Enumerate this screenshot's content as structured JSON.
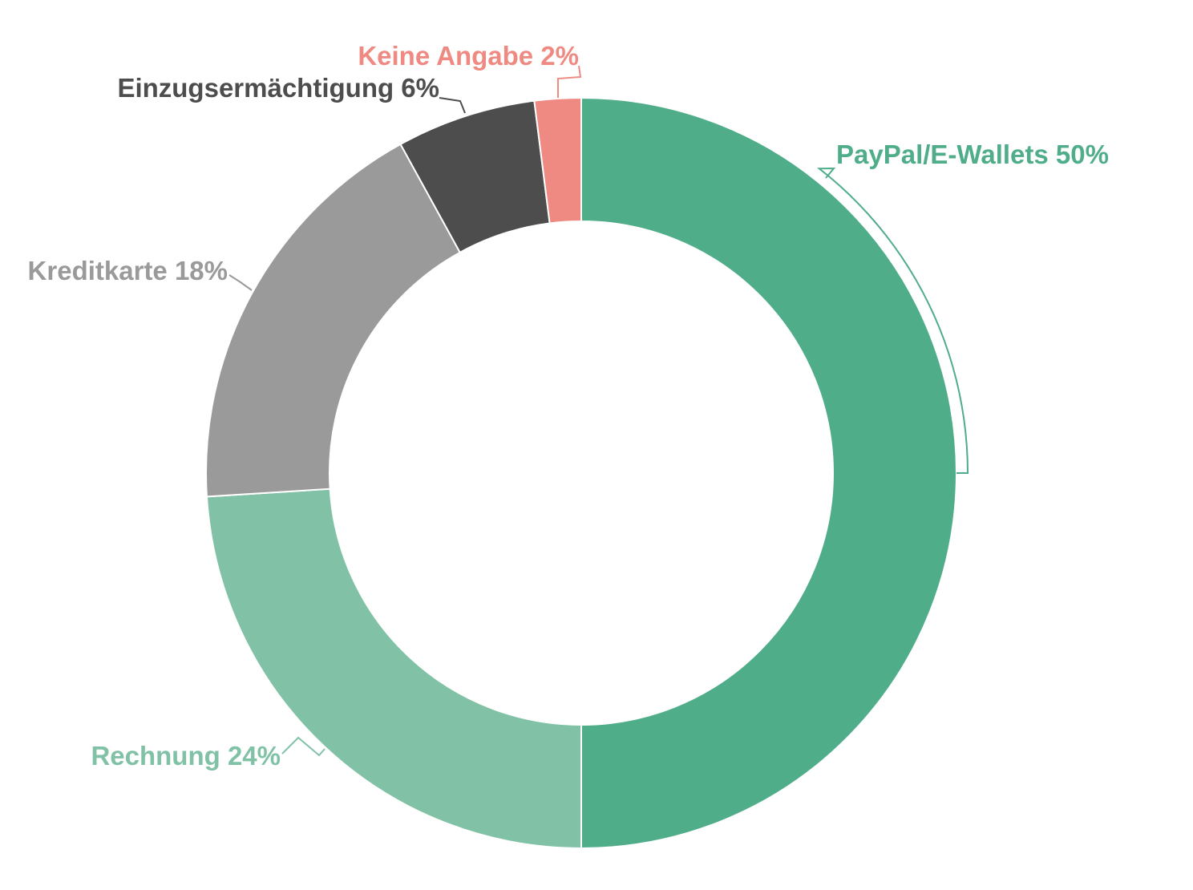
{
  "chart_data": {
    "type": "pie",
    "variant": "donut",
    "title": "",
    "series": [
      {
        "labels": [
          "PayPal/E-Wallets",
          "Rechnung",
          "Kreditkarte",
          "Einzugsermächtigung",
          "Keine Angabe"
        ],
        "values": [
          50,
          24,
          18,
          6,
          2
        ],
        "unit": "%",
        "colors": [
          "#4fad8a",
          "#81c2a7",
          "#9a9a9a",
          "#4d4d4d",
          "#ef8a82"
        ]
      }
    ],
    "data_labels": [
      "PayPal/E-Wallets 50%",
      "Rechnung 24%",
      "Kreditkarte 18%",
      "Einzugsermächtigung 6%",
      "Keine Angabe 2%"
    ],
    "label_colors": [
      "#4fad8a",
      "#81c2a7",
      "#9a9a9a",
      "#4d4d4d",
      "#ef8a82"
    ],
    "start": "12 o'clock, clockwise",
    "legend": "none"
  }
}
